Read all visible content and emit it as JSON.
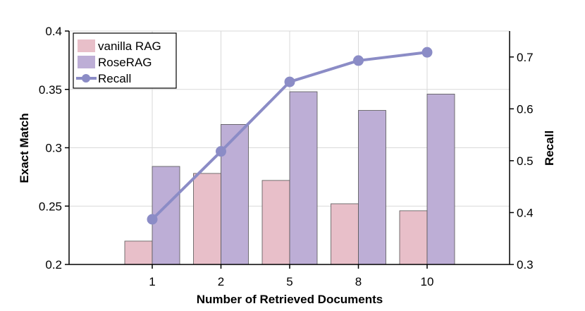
{
  "chart_data": {
    "type": "bar",
    "title": "",
    "xlabel": "Number of Retrieved Documents",
    "ylabel": "Exact Match",
    "y2label": "Recall",
    "categories": [
      "1",
      "2",
      "5",
      "8",
      "10"
    ],
    "ylim": [
      0.2,
      0.4
    ],
    "y2lim": [
      0.3,
      0.75
    ],
    "yticks": [
      "0.2",
      "0.25",
      "0.3",
      "0.35",
      "0.4"
    ],
    "y2ticks": [
      "0.3",
      "0.4",
      "0.5",
      "0.6",
      "0.7"
    ],
    "grid": true,
    "legend_position": "top-left",
    "series": [
      {
        "name": "vanilla RAG",
        "type": "bar",
        "axis": "left",
        "color": "#e8bfc9",
        "values": [
          0.22,
          0.278,
          0.272,
          0.252,
          0.246
        ]
      },
      {
        "name": "RoseRAG",
        "type": "bar",
        "axis": "left",
        "color": "#bdaed6",
        "values": [
          0.284,
          0.32,
          0.348,
          0.332,
          0.346
        ]
      },
      {
        "name": "Recall",
        "type": "line",
        "axis": "right",
        "color": "#8b8cc6",
        "values": [
          0.387,
          0.518,
          0.652,
          0.693,
          0.709
        ]
      }
    ]
  }
}
